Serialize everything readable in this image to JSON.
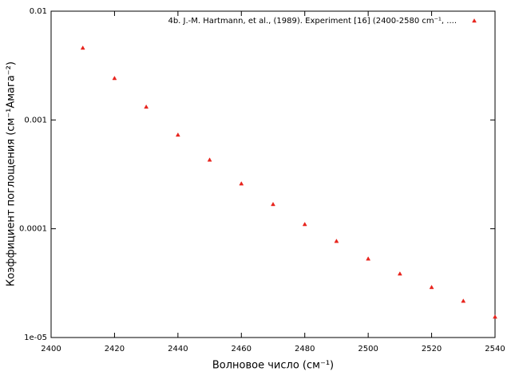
{
  "chart_data": {
    "type": "scatter",
    "xlabel": "Волновое число (см⁻¹)",
    "ylabel": "Коэффициент поглощения (см⁻¹Амага⁻²)",
    "xlim": [
      2400,
      2540
    ],
    "xticks": [
      2400,
      2420,
      2440,
      2460,
      2480,
      2500,
      2520,
      2540
    ],
    "ylim": [
      1e-05,
      0.01
    ],
    "yscale": "log",
    "yticks": [
      0.01,
      0.001,
      0.0001,
      {
        "value": 1e-05,
        "label": "1e-05"
      }
    ],
    "legend": "upper right",
    "grid": false,
    "series": [
      {
        "name": "4b. J.-M. Hartmann, et al., (1989). Experiment [16] (2400-2580 cm⁻¹, ....",
        "color": "#e8251e",
        "x": [
          2410,
          2420,
          2430,
          2440,
          2450,
          2460,
          2470,
          2480,
          2490,
          2500,
          2510,
          2520,
          2530,
          2540
        ],
        "values": [
          0.0046,
          0.00242,
          0.00132,
          0.00073,
          0.00043,
          0.00026,
          0.000168,
          0.00011,
          7.7e-05,
          5.3e-05,
          3.86e-05,
          2.9e-05,
          2.17e-05,
          1.55e-05
        ]
      }
    ]
  }
}
